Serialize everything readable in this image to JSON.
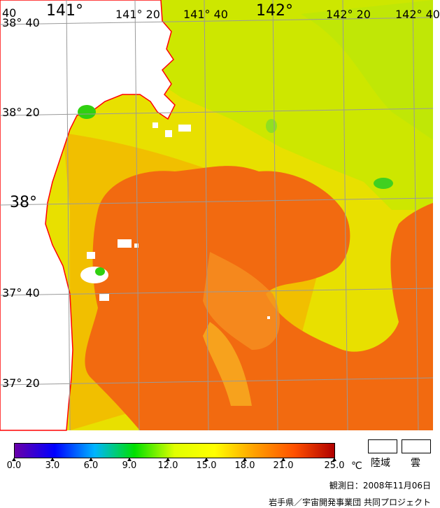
{
  "map": {
    "lat_labels": [
      {
        "text": "38° 40"
      },
      {
        "text": "38° 20"
      },
      {
        "text": "38°"
      },
      {
        "text": "37° 40"
      },
      {
        "text": "37° 20"
      }
    ],
    "lon_labels": [
      {
        "text": "40"
      },
      {
        "text": "141°"
      },
      {
        "text": "141° 20"
      },
      {
        "text": "141° 40"
      },
      {
        "text": "142°"
      },
      {
        "text": "142° 20"
      },
      {
        "text": "142° 40"
      }
    ],
    "colors": {
      "land": "#ffffff",
      "coast": "#ff0000",
      "grid": "#9a9a9a"
    }
  },
  "colorbar": {
    "ticks": [
      "0.0",
      "3.0",
      "6.0",
      "9.0",
      "12.0",
      "15.0",
      "18.0",
      "21.0",
      "25.0"
    ],
    "unit": "℃",
    "stops": [
      "#6a00a8",
      "#0000ff",
      "#00b4ff",
      "#00e000",
      "#e0ff00",
      "#ffff00",
      "#ffa000",
      "#ff5000",
      "#b00000"
    ]
  },
  "legend": {
    "land_label": "陸域",
    "cloud_label": "雲"
  },
  "footer": {
    "observation_date": "観測日：2008年11月06日",
    "credit": "岩手県／宇宙開発事業団 共同プロジェクト"
  }
}
